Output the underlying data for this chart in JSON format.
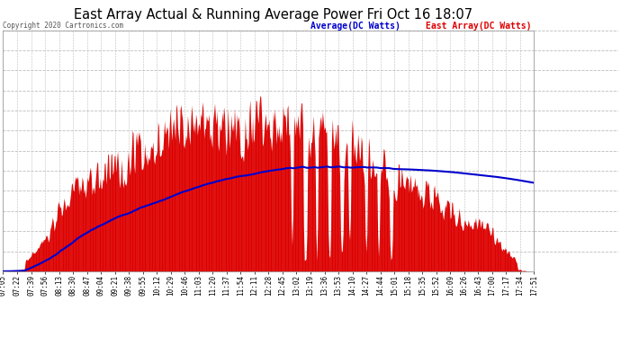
{
  "title": "East Array Actual & Running Average Power Fri Oct 16 18:07",
  "copyright": "Copyright 2020 Cartronics.com",
  "legend_avg": "Average(DC Watts)",
  "legend_east": "East Array(DC Watts)",
  "yticks": [
    0.0,
    155.2,
    310.4,
    465.7,
    620.9,
    776.1,
    931.3,
    1086.5,
    1241.7,
    1397.0,
    1552.2,
    1707.4,
    1862.6
  ],
  "ymax": 1862.6,
  "ymin": 0.0,
  "bg_color": "#ffffff",
  "bar_color": "#dd0000",
  "avg_color": "#0000cc",
  "grid_color": "#bbbbbb",
  "title_color": "#000000",
  "xtick_labels": [
    "07:05",
    "07:22",
    "07:39",
    "07:56",
    "08:13",
    "08:30",
    "08:47",
    "09:04",
    "09:21",
    "09:38",
    "09:55",
    "10:12",
    "10:29",
    "10:46",
    "11:03",
    "11:20",
    "11:37",
    "11:54",
    "12:11",
    "12:28",
    "12:45",
    "13:02",
    "13:19",
    "13:36",
    "13:53",
    "14:10",
    "14:27",
    "14:44",
    "15:01",
    "15:18",
    "15:35",
    "15:52",
    "16:09",
    "16:26",
    "16:43",
    "17:00",
    "17:17",
    "17:34",
    "17:51"
  ],
  "n_ticks": 39
}
